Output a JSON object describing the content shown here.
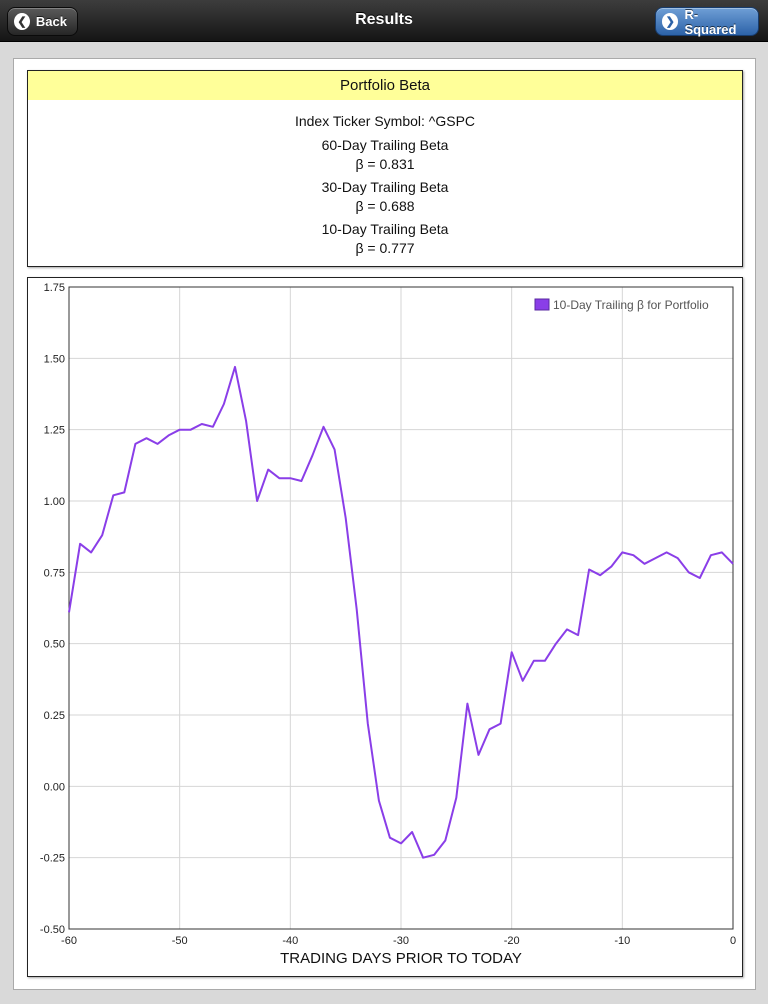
{
  "navbar": {
    "title": "Results",
    "back_label": "Back",
    "back_icon": "chevron-left-icon",
    "right_label": "R-Squared",
    "right_icon": "chevron-right-icon"
  },
  "beta_panel": {
    "title": "Portfolio Beta",
    "ticker_line": "Index Ticker Symbol: ^GSPC",
    "items": [
      {
        "label": "60-Day Trailing Beta",
        "value": "β = 0.831"
      },
      {
        "label": "30-Day Trailing Beta",
        "value": "β = 0.688"
      },
      {
        "label": "10-Day Trailing Beta",
        "value": "β = 0.777"
      }
    ]
  },
  "colors": {
    "header_bg": "#ffff99",
    "series": "#8a3ee8",
    "nav_right_button": "#3f76bd"
  },
  "chart_data": {
    "type": "line",
    "xlabel": "TRADING DAYS PRIOR TO TODAY",
    "ylabel": "",
    "xlim": [
      -60,
      0
    ],
    "ylim": [
      -0.5,
      1.75
    ],
    "xticks": [
      -60,
      -50,
      -40,
      -30,
      -20,
      -10,
      0
    ],
    "yticks": [
      -0.5,
      -0.25,
      0,
      0.25,
      0.5,
      0.75,
      1,
      1.25,
      1.5,
      1.75
    ],
    "ytick_labels": [
      "-0.50",
      "-0.25",
      "0.00",
      "0.25",
      "0.50",
      "0.75",
      "1.00",
      "1.25",
      "1.50",
      "1.75"
    ],
    "grid": true,
    "legend_position": "top-right",
    "series": [
      {
        "name": "10-Day Trailing β for Portfolio",
        "color": "#8a3ee8",
        "x": [
          -60,
          -59,
          -58,
          -57,
          -56,
          -55,
          -54,
          -53,
          -52,
          -51,
          -50,
          -49,
          -48,
          -47,
          -46,
          -45,
          -44,
          -43,
          -42,
          -41,
          -40,
          -39,
          -38,
          -37,
          -36,
          -35,
          -34,
          -33,
          -32,
          -31,
          -30,
          -29,
          -28,
          -27,
          -26,
          -25,
          -24,
          -23,
          -22,
          -21,
          -20,
          -19,
          -18,
          -17,
          -16,
          -15,
          -14,
          -13,
          -12,
          -11,
          -10,
          -9,
          -8,
          -7,
          -6,
          -5,
          -4,
          -3,
          -2,
          -1,
          0
        ],
        "y": [
          0.61,
          0.85,
          0.82,
          0.88,
          1.02,
          1.03,
          1.2,
          1.22,
          1.2,
          1.23,
          1.25,
          1.25,
          1.27,
          1.26,
          1.34,
          1.47,
          1.28,
          1.0,
          1.11,
          1.08,
          1.08,
          1.07,
          1.16,
          1.26,
          1.18,
          0.94,
          0.62,
          0.22,
          -0.05,
          -0.18,
          -0.2,
          -0.16,
          -0.25,
          -0.24,
          -0.19,
          -0.04,
          0.29,
          0.11,
          0.2,
          0.22,
          0.47,
          0.37,
          0.44,
          0.44,
          0.5,
          0.55,
          0.53,
          0.76,
          0.74,
          0.77,
          0.82,
          0.81,
          0.78,
          0.8,
          0.82,
          0.8,
          0.75,
          0.73,
          0.81,
          0.82,
          0.78
        ]
      }
    ]
  }
}
